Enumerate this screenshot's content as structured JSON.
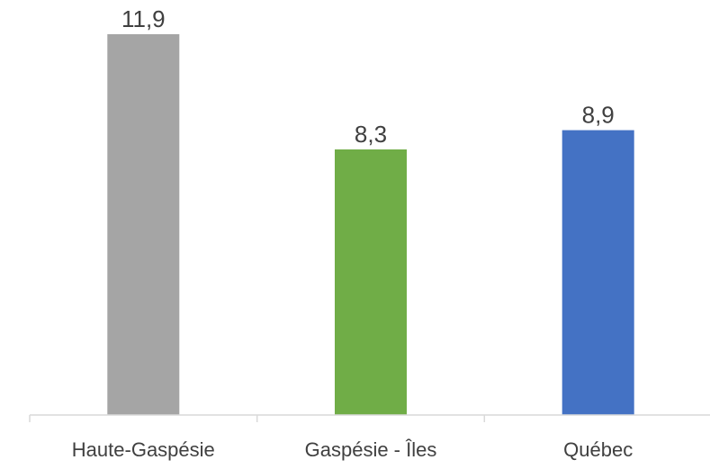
{
  "chart_data": {
    "type": "bar",
    "categories": [
      "Haute-Gaspésie",
      "Gaspésie - Îles",
      "Québec"
    ],
    "values": [
      11.9,
      8.3,
      8.9
    ],
    "value_labels": [
      "11,9",
      "8,3",
      "8,9"
    ],
    "colors": [
      "#A5A5A5",
      "#70AD47",
      "#4472C4"
    ],
    "title": "",
    "xlabel": "",
    "ylabel": "",
    "ylim": [
      0,
      11.9
    ],
    "grid": false,
    "legend": "none"
  },
  "colors": {
    "axis": "#D9D9D9",
    "label_text": "#404040"
  }
}
